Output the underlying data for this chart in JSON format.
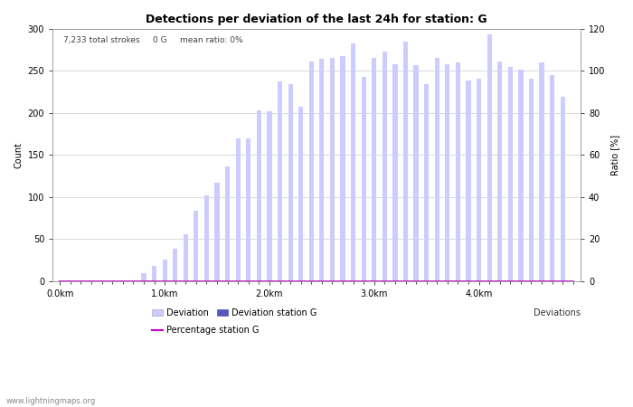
{
  "title": "Detections per deviation of the last 24h for station: G",
  "subtitle": "7,233 total strokes     0 G     mean ratio: 0%",
  "xlabel": "Deviations",
  "ylabel_left": "Count",
  "ylabel_right": "Ratio [%]",
  "watermark": "www.lightningmaps.org",
  "ylim_left": [
    0,
    300
  ],
  "ylim_right": [
    0,
    120
  ],
  "yticks_left": [
    0,
    50,
    100,
    150,
    200,
    250,
    300
  ],
  "yticks_right": [
    0,
    20,
    40,
    60,
    80,
    100,
    120
  ],
  "bar_color_deviation": "#ccccff",
  "bar_color_station": "#5555bb",
  "line_color": "#cc00cc",
  "xtick_labels": [
    "0.0km",
    "1.0km",
    "2.0km",
    "3.0km",
    "4.0km"
  ],
  "xtick_positions": [
    0,
    10,
    20,
    30,
    40
  ],
  "deviation_values": [
    1,
    1,
    1,
    1,
    1,
    1,
    1,
    1,
    9,
    18,
    25,
    38,
    56,
    84,
    102,
    117,
    136,
    170,
    170,
    203,
    202,
    238,
    234,
    207,
    261,
    264,
    265,
    268,
    283,
    243,
    265,
    273,
    258,
    285,
    257,
    234,
    266,
    258,
    260,
    239,
    241,
    293,
    261,
    255,
    251,
    241,
    260,
    245,
    219,
    0
  ],
  "station_g_values": [
    0,
    0,
    0,
    0,
    0,
    0,
    0,
    0,
    0,
    0,
    0,
    0,
    0,
    0,
    0,
    0,
    0,
    0,
    0,
    0,
    0,
    0,
    0,
    0,
    0,
    0,
    0,
    0,
    0,
    0,
    0,
    0,
    0,
    0,
    0,
    0,
    0,
    0,
    0,
    0,
    0,
    0,
    0,
    0,
    0,
    0,
    0,
    0,
    0,
    0
  ],
  "percentage_values": [
    0,
    0,
    0,
    0,
    0,
    0,
    0,
    0,
    0,
    0,
    0,
    0,
    0,
    0,
    0,
    0,
    0,
    0,
    0,
    0,
    0,
    0,
    0,
    0,
    0,
    0,
    0,
    0,
    0,
    0,
    0,
    0,
    0,
    0,
    0,
    0,
    0,
    0,
    0,
    0,
    0,
    0,
    0,
    0,
    0,
    0,
    0,
    0,
    0,
    0
  ]
}
